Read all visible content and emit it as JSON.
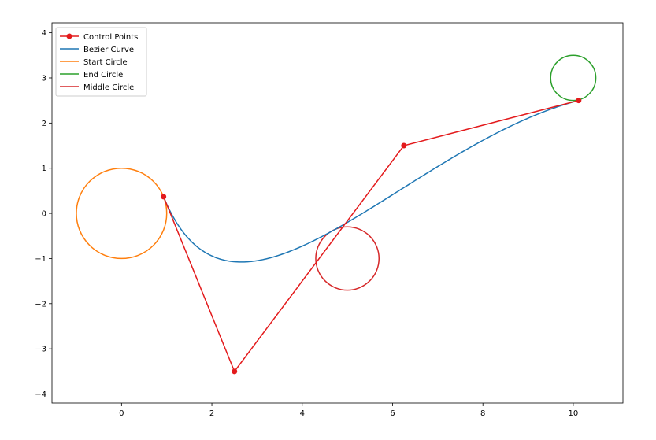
{
  "chart_data": {
    "type": "line",
    "title": "",
    "xlabel": "",
    "ylabel": "",
    "xlim": [
      -1.54,
      11.1
    ],
    "ylim": [
      -4.2,
      4.22
    ],
    "aspect": "equal",
    "grid": false,
    "legend_position": "top-left",
    "x_ticks": [
      "0",
      "2",
      "4",
      "6",
      "8",
      "10"
    ],
    "y_ticks": [
      "−4",
      "−3",
      "−2",
      "−1",
      "0",
      "1",
      "2",
      "3",
      "4"
    ],
    "x_tick_values": [
      0,
      2,
      4,
      6,
      8,
      10
    ],
    "y_tick_values": [
      -4,
      -3,
      -2,
      -1,
      0,
      1,
      2,
      3,
      4
    ],
    "series": [
      {
        "name": "Control Points",
        "kind": "polyline-markers",
        "color": "#e31a1c",
        "points": [
          [
            0.93,
            0.37
          ],
          [
            2.5,
            -3.5
          ],
          [
            6.25,
            1.5
          ],
          [
            10.12,
            2.5
          ]
        ]
      },
      {
        "name": "Bezier Curve",
        "kind": "cubic-bezier",
        "color": "#1f77b4",
        "control_points": [
          [
            0.93,
            0.37
          ],
          [
            2.5,
            -3.5
          ],
          [
            6.25,
            1.5
          ],
          [
            10.12,
            2.5
          ]
        ]
      },
      {
        "name": "Start Circle",
        "kind": "circle",
        "color": "#ff7f0e",
        "center": [
          0,
          0
        ],
        "radius": 1
      },
      {
        "name": "End Circle",
        "kind": "circle",
        "color": "#2ca02c",
        "center": [
          10,
          3
        ],
        "radius": 0.5
      },
      {
        "name": "Middle Circle",
        "kind": "circle",
        "color": "#d62728",
        "center": [
          5,
          -1
        ],
        "radius": 0.7
      }
    ]
  }
}
